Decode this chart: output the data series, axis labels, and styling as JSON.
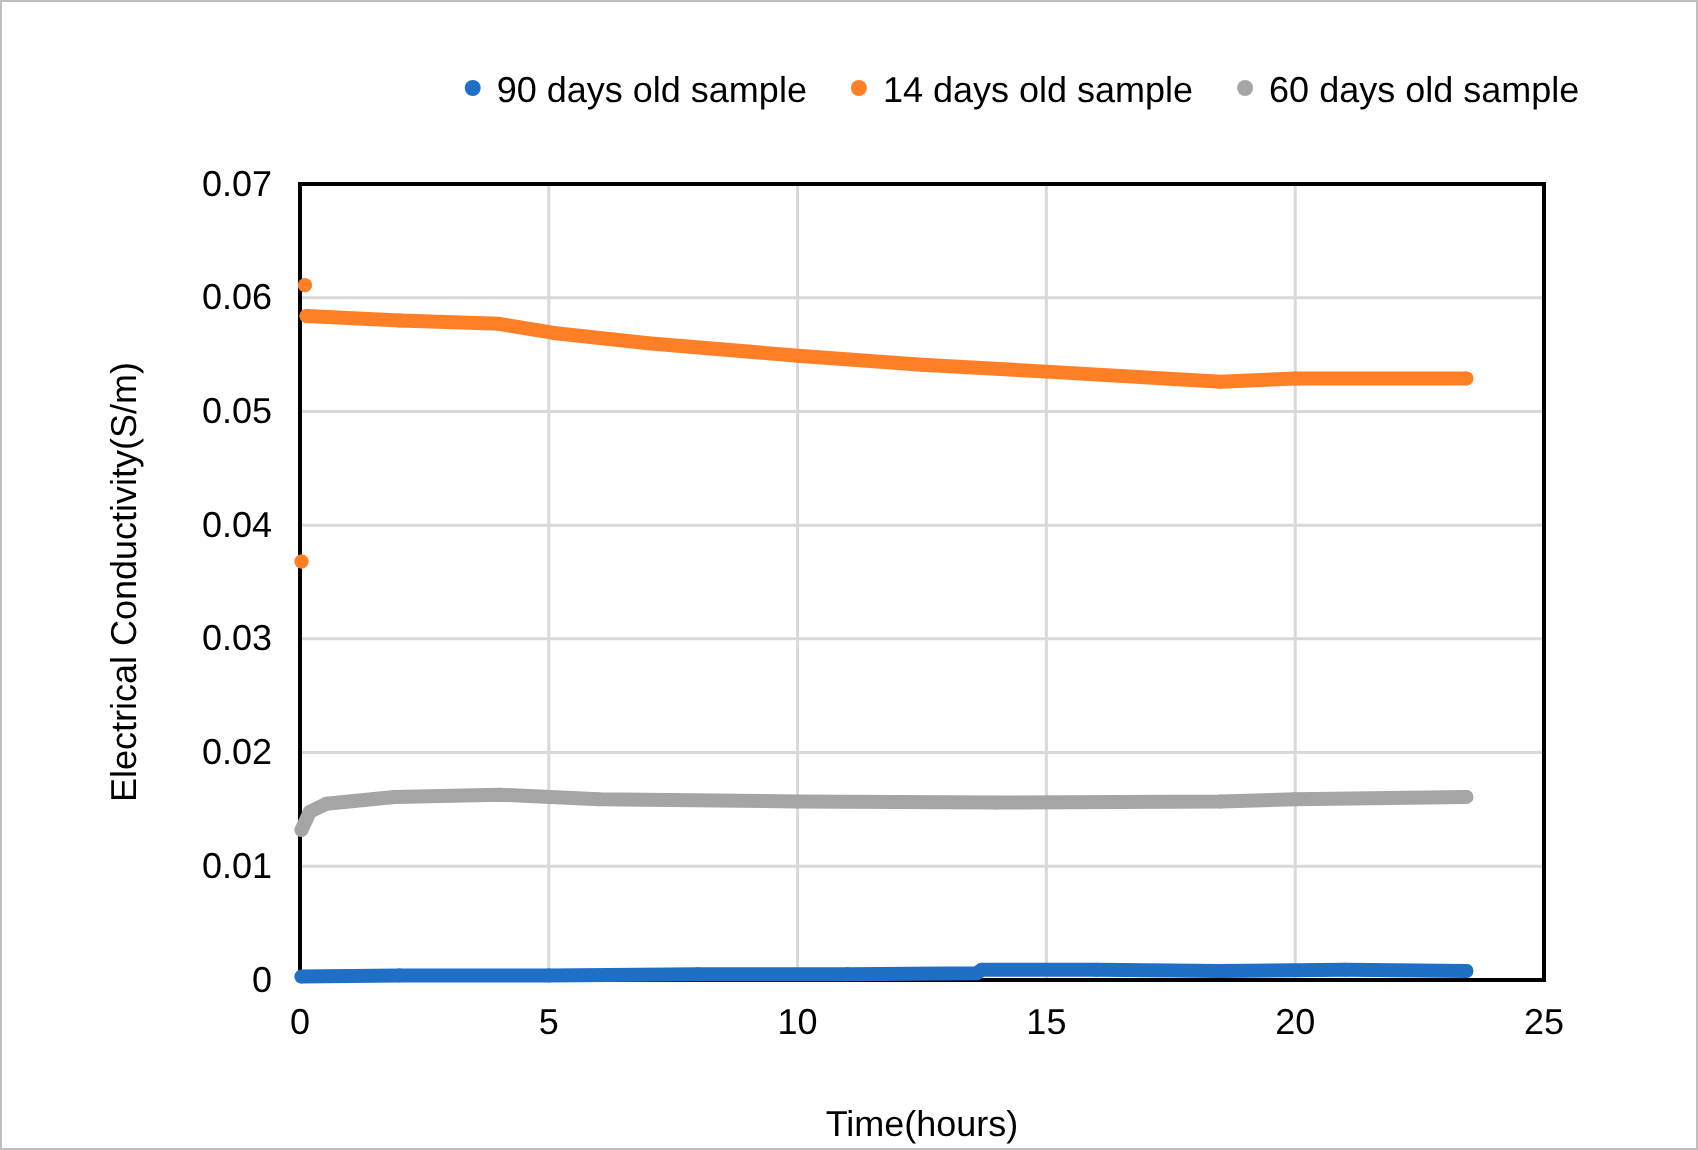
{
  "chart_data": {
    "type": "line",
    "xlabel": "Time(hours)",
    "ylabel": "Electrical Conductivity(S/m)",
    "xlim": [
      0,
      25
    ],
    "ylim": [
      0,
      0.07
    ],
    "xticks": [
      0,
      5,
      10,
      15,
      20,
      25
    ],
    "yticks": [
      0,
      0.01,
      0.02,
      0.03,
      0.04,
      0.05,
      0.06,
      0.07
    ],
    "grid": true,
    "legend": "top",
    "marker": "circle",
    "line_style": "solid",
    "series": [
      {
        "name": "90 days old sample",
        "color": "#1f6fc6",
        "x": [
          0.03,
          2,
          5,
          8,
          11,
          13.6,
          13.7,
          16,
          18.5,
          21,
          23.44
        ],
        "values": [
          0.0003,
          0.0004,
          0.0004,
          0.0005,
          0.0005,
          0.0006,
          0.0009,
          0.0009,
          0.0008,
          0.0009,
          0.0008
        ]
      },
      {
        "name": "14 days old sample",
        "color": "#ff7f27",
        "x": [
          0.03,
          0.05,
          0.1,
          0.12,
          0.13,
          2,
          4,
          5.1,
          7,
          10,
          12.5,
          15,
          18.5,
          20,
          23.44
        ],
        "values": [
          0.0368,
          null,
          0.0611,
          null,
          0.0584,
          0.058,
          0.0577,
          0.0569,
          0.056,
          0.0549,
          0.0541,
          0.0535,
          0.0526,
          0.0529,
          0.0529
        ]
      },
      {
        "name": "60 days old sample",
        "color": "#a5a5a5",
        "x": [
          0.03,
          0.2,
          0.53,
          1.9,
          4,
          6,
          10,
          14,
          18.5,
          20,
          23.44
        ],
        "values": [
          0.0132,
          0.0148,
          0.0155,
          0.0161,
          0.0163,
          0.0159,
          0.0157,
          0.0156,
          0.0157,
          0.0159,
          0.0161
        ]
      }
    ]
  }
}
